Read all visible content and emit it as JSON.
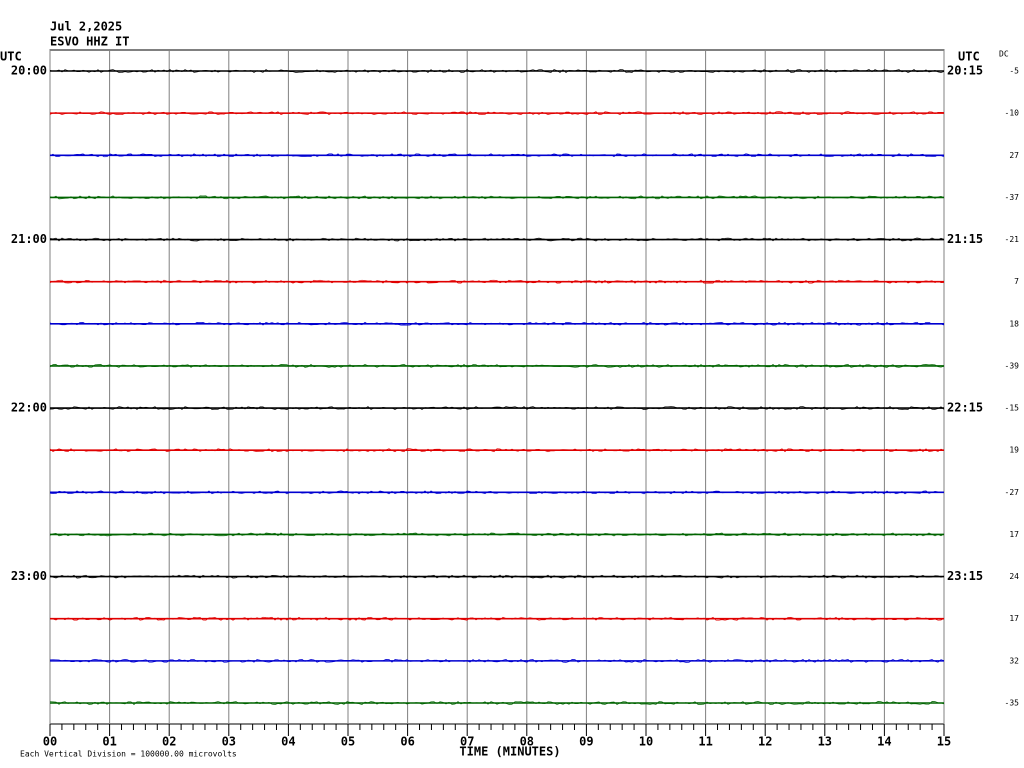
{
  "chart_data": {
    "type": "helicorder",
    "date": "Jul 2,2025",
    "station": "ESVO HHZ IT",
    "left_axis_label": "UTC",
    "right_axis_label": "UTC",
    "dc_label": "DC",
    "rows": [
      {
        "left": "20:00",
        "right": "20:15",
        "dc": "-5"
      },
      {
        "left": null,
        "right": null,
        "dc": "-10"
      },
      {
        "left": null,
        "right": null,
        "dc": "27"
      },
      {
        "left": null,
        "right": null,
        "dc": "-37"
      },
      {
        "left": "21:00",
        "right": "21:15",
        "dc": "-21"
      },
      {
        "left": null,
        "right": null,
        "dc": "7"
      },
      {
        "left": null,
        "right": null,
        "dc": "18"
      },
      {
        "left": null,
        "right": null,
        "dc": "-39"
      },
      {
        "left": "22:00",
        "right": "22:15",
        "dc": "-15"
      },
      {
        "left": null,
        "right": null,
        "dc": "19"
      },
      {
        "left": null,
        "right": null,
        "dc": "-27"
      },
      {
        "left": null,
        "right": null,
        "dc": "17"
      },
      {
        "left": "23:00",
        "right": "23:15",
        "dc": "24"
      },
      {
        "left": null,
        "right": null,
        "dc": "17"
      },
      {
        "left": null,
        "right": null,
        "dc": "32"
      },
      {
        "left": null,
        "right": null,
        "dc": "-35"
      }
    ],
    "trace_colors": [
      "#000000",
      "#e00000",
      "#0000d0",
      "#006400"
    ],
    "xlim": [
      0,
      15
    ],
    "xticks": [
      {
        "value": 0,
        "label": "00"
      },
      {
        "value": 1,
        "label": "01"
      },
      {
        "value": 2,
        "label": "02"
      },
      {
        "value": 3,
        "label": "03"
      },
      {
        "value": 4,
        "label": "04"
      },
      {
        "value": 5,
        "label": "05"
      },
      {
        "value": 6,
        "label": "06"
      },
      {
        "value": 7,
        "label": "07"
      },
      {
        "value": 8,
        "label": "08"
      },
      {
        "value": 9,
        "label": "09"
      },
      {
        "value": 10,
        "label": "10"
      },
      {
        "value": 11,
        "label": "11"
      },
      {
        "value": 12,
        "label": "12"
      },
      {
        "value": 13,
        "label": "13"
      },
      {
        "value": 14,
        "label": "14"
      },
      {
        "value": 15,
        "label": "15"
      }
    ],
    "minor_ticks_per_minute": 5,
    "x_label": "TIME (MINUTES)",
    "footer": "Each Vertical Division = 100000.00 microvolts"
  }
}
